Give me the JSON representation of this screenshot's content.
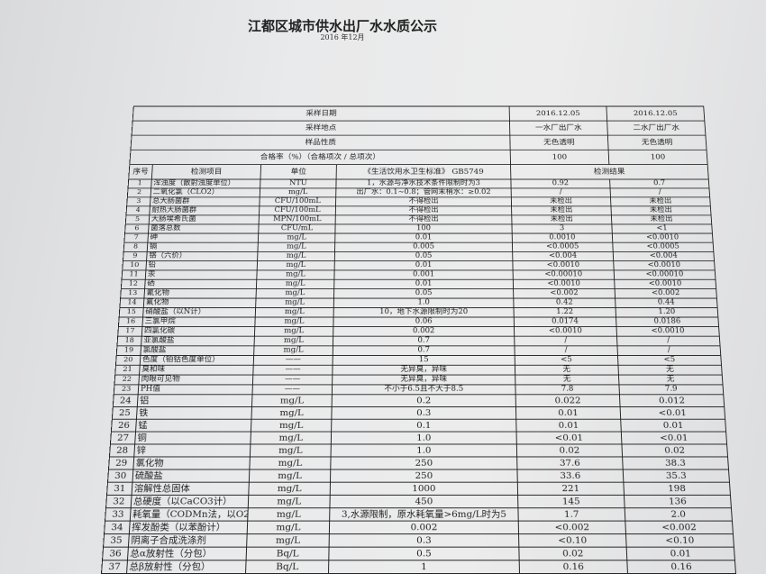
{
  "title": "江都区城市供水出厂水水质公示",
  "subtitle": "2016 年12月",
  "header_rows": [
    {
      "label": "采样日期",
      "v1": "2016.12.05",
      "v2": "2016.12.05"
    },
    {
      "label": "采样地点",
      "v1": "一水厂出厂水",
      "v2": "二水厂出厂水"
    },
    {
      "label": "样品性质",
      "v1": "无色透明",
      "v2": "无色透明"
    },
    {
      "label": "合格率（%）（合格项次 / 总项次）",
      "v1": "100",
      "v2": "100"
    }
  ],
  "columns": {
    "seq": "序号",
    "item": "检测项目",
    "unit": "单位",
    "standard": "《生活饮用水卫生标准》 GB5749",
    "result": "检测结果"
  },
  "rows": [
    {
      "n": "1",
      "item": "浑浊度（散射浊度单位）",
      "unit": "NTU",
      "std": "1，水源与净水技术条件限制时为3",
      "r1": "0.92",
      "r2": "0.7"
    },
    {
      "n": "2",
      "item": "二氧化氯（CLO2）",
      "unit": "mg/L",
      "std": "出厂水：0.1~0.8；管网末梢水：≥0.02",
      "r1": "/",
      "r2": "/"
    },
    {
      "n": "3",
      "item": "总大肠菌群",
      "unit": "CFU/100mL",
      "std": "不得检出",
      "r1": "未检出",
      "r2": "未检出"
    },
    {
      "n": "4",
      "item": "耐热大肠菌群",
      "unit": "CFU/100mL",
      "std": "不得检出",
      "r1": "未检出",
      "r2": "未检出"
    },
    {
      "n": "5",
      "item": "大肠埃希氏菌",
      "unit": "MPN/100mL",
      "std": "不得检出",
      "r1": "未检出",
      "r2": "未检出"
    },
    {
      "n": "6",
      "item": "菌落总数",
      "unit": "CFU/mL",
      "std": "100",
      "r1": "3",
      "r2": "<1"
    },
    {
      "n": "7",
      "item": "砷",
      "unit": "mg/L",
      "std": "0.01",
      "r1": "0.0010",
      "r2": "<0.0010"
    },
    {
      "n": "8",
      "item": "镉",
      "unit": "mg/L",
      "std": "0.005",
      "r1": "<0.0005",
      "r2": "<0.0005"
    },
    {
      "n": "9",
      "item": "铬（六价）",
      "unit": "mg/L",
      "std": "0.05",
      "r1": "<0.004",
      "r2": "<0.004"
    },
    {
      "n": "10",
      "item": "铅",
      "unit": "mg/L",
      "std": "0.01",
      "r1": "<0.0010",
      "r2": "<0.0010"
    },
    {
      "n": "11",
      "item": "汞",
      "unit": "mg/L",
      "std": "0.001",
      "r1": "<0.00010",
      "r2": "<0.00010"
    },
    {
      "n": "12",
      "item": "硒",
      "unit": "mg/L",
      "std": "0.01",
      "r1": "<0.0010",
      "r2": "<0.0010"
    },
    {
      "n": "13",
      "item": "氰化物",
      "unit": "mg/L",
      "std": "0.05",
      "r1": "<0.002",
      "r2": "<0.002"
    },
    {
      "n": "14",
      "item": "氟化物",
      "unit": "mg/L",
      "std": "1.0",
      "r1": "0.42",
      "r2": "0.44"
    },
    {
      "n": "15",
      "item": "硝酸盐（以N计）",
      "unit": "mg/L",
      "std": "10，地下水源限制时为20",
      "r1": "1.22",
      "r2": "1.20"
    },
    {
      "n": "16",
      "item": "三氯甲烷",
      "unit": "mg/L",
      "std": "0.06",
      "r1": "0.0174",
      "r2": "0.0186"
    },
    {
      "n": "17",
      "item": "四氯化碳",
      "unit": "mg/L",
      "std": "0.002",
      "r1": "<0.0010",
      "r2": "<0.0010"
    },
    {
      "n": "18",
      "item": "亚氯酸盐",
      "unit": "mg/L",
      "std": "0.7",
      "r1": "/",
      "r2": "/"
    },
    {
      "n": "19",
      "item": "氯酸盐",
      "unit": "mg/L",
      "std": "0.7",
      "r1": "/",
      "r2": "/"
    },
    {
      "n": "20",
      "item": "色度（铂钴色度单位）",
      "unit": "——",
      "std": "15",
      "r1": "<5",
      "r2": "<5"
    },
    {
      "n": "21",
      "item": "臭和味",
      "unit": "——",
      "std": "无异臭，异味",
      "r1": "无",
      "r2": "无"
    },
    {
      "n": "22",
      "item": "肉眼可见物",
      "unit": "——",
      "std": "无异臭，异味",
      "r1": "无",
      "r2": "无"
    },
    {
      "n": "23",
      "item": "PH值",
      "unit": "——",
      "std": "不小于6.5且不大于8.5",
      "r1": "7.8",
      "r2": "7.9"
    },
    {
      "n": "24",
      "item": "铝",
      "unit": "mg/L",
      "std": "0.2",
      "r1": "0.022",
      "r2": "0.012"
    },
    {
      "n": "25",
      "item": "铁",
      "unit": "mg/L",
      "std": "0.3",
      "r1": "0.01",
      "r2": "<0.01"
    },
    {
      "n": "26",
      "item": "锰",
      "unit": "mg/L",
      "std": "0.1",
      "r1": "0.01",
      "r2": "0.01"
    },
    {
      "n": "27",
      "item": "铜",
      "unit": "mg/L",
      "std": "1.0",
      "r1": "<0.01",
      "r2": "<0.01"
    },
    {
      "n": "28",
      "item": "锌",
      "unit": "mg/L",
      "std": "1.0",
      "r1": "0.02",
      "r2": "0.02"
    },
    {
      "n": "29",
      "item": "氯化物",
      "unit": "mg/L",
      "std": "250",
      "r1": "37.6",
      "r2": "38.3"
    },
    {
      "n": "30",
      "item": "硫酸盐",
      "unit": "mg/L",
      "std": "250",
      "r1": "33.6",
      "r2": "35.3"
    },
    {
      "n": "31",
      "item": "溶解性总固体",
      "unit": "mg/L",
      "std": "1000",
      "r1": "221",
      "r2": "198"
    },
    {
      "n": "32",
      "item": "总硬度（以CaCO3计）",
      "unit": "mg/L",
      "std": "450",
      "r1": "145",
      "r2": "136"
    },
    {
      "n": "33",
      "item": "耗氧量（CODMn法，以O2计）",
      "unit": "mg/L",
      "std": "3,水源限制，原水耗氧量>6mg/L时为5",
      "r1": "1.7",
      "r2": "2.0"
    },
    {
      "n": "34",
      "item": "挥发酚类（以苯酚计）",
      "unit": "mg/L",
      "std": "0.002",
      "r1": "<0.002",
      "r2": "<0.002"
    },
    {
      "n": "35",
      "item": "阴离子合成洗涤剂",
      "unit": "mg/L",
      "std": "0.3",
      "r1": "<0.10",
      "r2": "<0.10"
    },
    {
      "n": "36",
      "item": "总α放射性（分包）",
      "unit": "Bq/L",
      "std": "0.5",
      "r1": "0.02",
      "r2": "0.01"
    },
    {
      "n": "37",
      "item": "总β放射性（分包）",
      "unit": "Bq/L",
      "std": "1",
      "r1": "0.16",
      "r2": "0.16"
    }
  ]
}
